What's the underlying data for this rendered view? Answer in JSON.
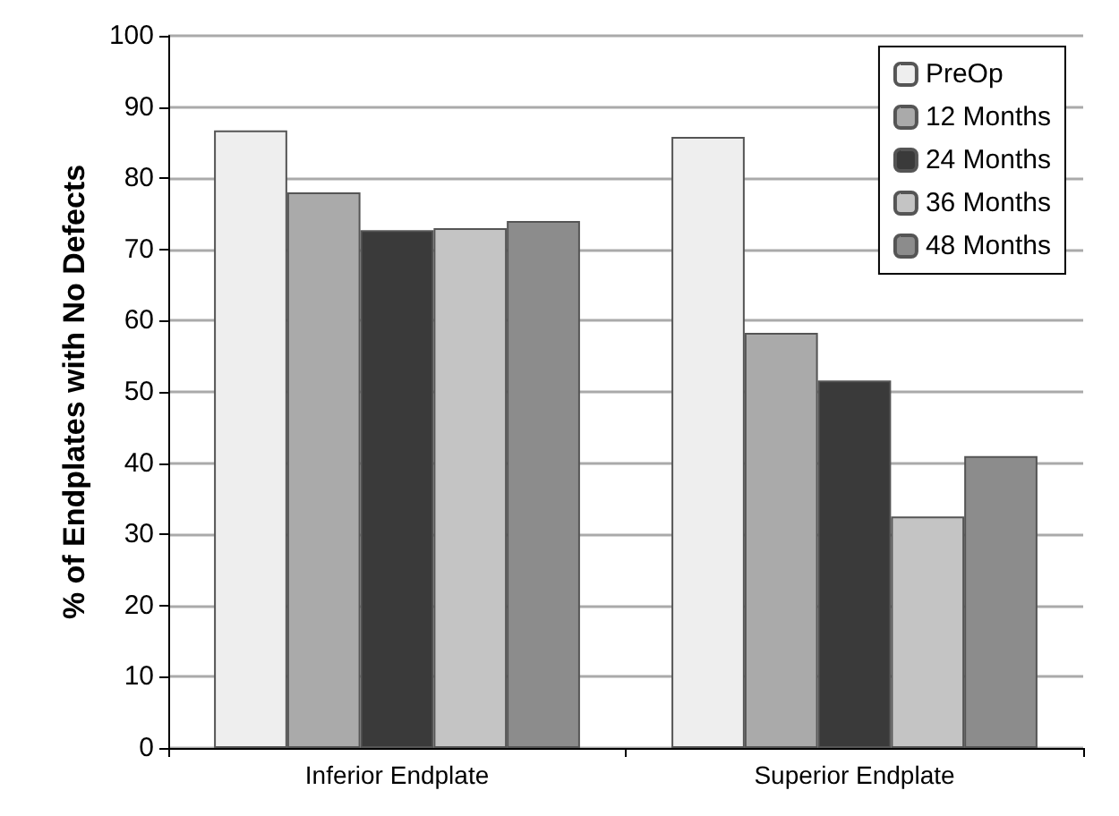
{
  "chart_data": {
    "type": "bar",
    "ylabel": "% of Endplates with No Defects",
    "categories": [
      "Inferior Endplate",
      "Superior Endplate"
    ],
    "series": [
      {
        "name": "PreOp",
        "color": "#eeeeee",
        "values": [
          86.7,
          85.8
        ]
      },
      {
        "name": "12 Months",
        "color": "#aaaaaa",
        "values": [
          78,
          58.3
        ]
      },
      {
        "name": "24 Months",
        "color": "#3a3a3a",
        "values": [
          72.7,
          51.6
        ]
      },
      {
        "name": "36 Months",
        "color": "#c4c4c4",
        "values": [
          73,
          32.5
        ]
      },
      {
        "name": "48 Months",
        "color": "#8c8c8c",
        "values": [
          74,
          41
        ]
      }
    ],
    "ylim": [
      0,
      100
    ],
    "yticks": [
      0,
      10,
      20,
      30,
      40,
      50,
      60,
      70,
      80,
      90,
      100
    ],
    "grid": "y",
    "legend": "top right"
  }
}
